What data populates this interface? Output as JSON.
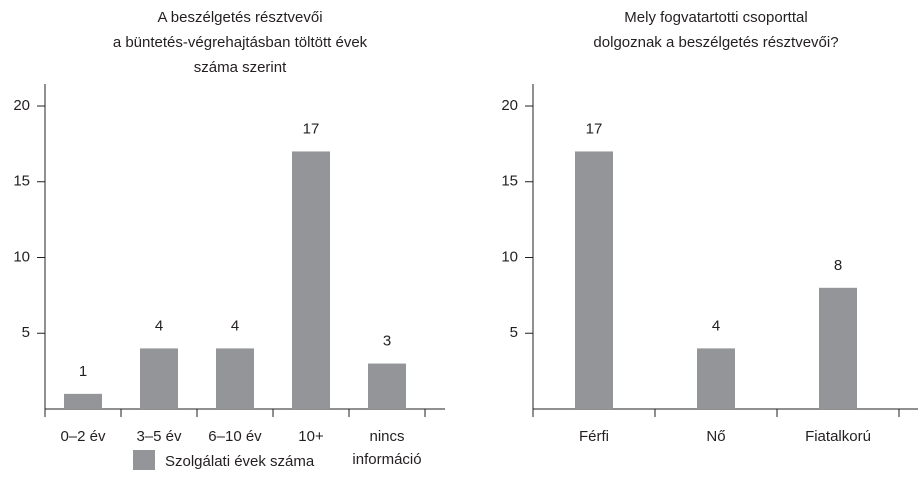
{
  "chart_data": [
    {
      "type": "bar",
      "title": [
        "A beszélgetés résztvevői",
        "a büntetés-végrehajtásban töltött évek",
        "száma szerint"
      ],
      "categories": [
        "0–2 év",
        "3–5 év",
        "6–10 év",
        "10+",
        "nincs információ"
      ],
      "series": [
        {
          "name": "Szolgálati évek száma",
          "color": "#939598",
          "values": [
            1,
            4,
            4,
            17,
            3
          ]
        }
      ],
      "ylim": [
        0,
        20
      ],
      "yticks": [
        5,
        10,
        15,
        20
      ]
    },
    {
      "type": "bar",
      "title": [
        "Mely fogvatartotti csoporttal",
        "dolgoznak a beszélgetés résztvevői?"
      ],
      "categories": [
        "Férfi",
        "Nő",
        "Fiatalkorú"
      ],
      "series": [
        {
          "color": "#939598",
          "values": [
            17,
            4,
            8
          ]
        }
      ],
      "ylim": [
        0,
        20
      ],
      "yticks": [
        5,
        10,
        15,
        20
      ]
    }
  ]
}
